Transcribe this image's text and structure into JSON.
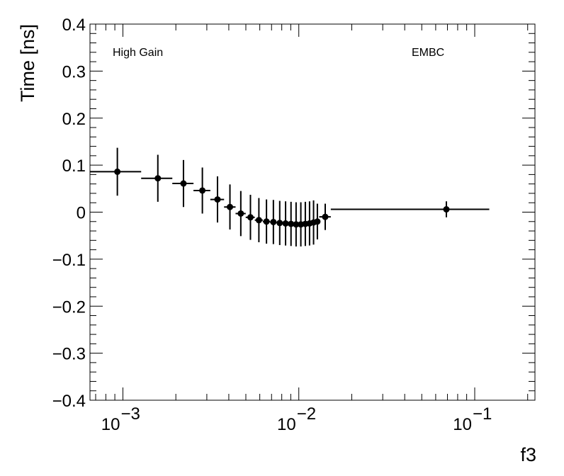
{
  "chart_data": {
    "type": "scatter",
    "xlabel": "f3",
    "ylabel": "Time [ns]",
    "xscale": "log",
    "xlim": [
      0.00065,
      0.22
    ],
    "ylim": [
      -0.4,
      0.4
    ],
    "y_ticks": [
      {
        "value": 0.4,
        "label": "0.4"
      },
      {
        "value": 0.3,
        "label": "0.3"
      },
      {
        "value": 0.2,
        "label": "0.2"
      },
      {
        "value": 0.1,
        "label": "0.1"
      },
      {
        "value": 0.0,
        "label": "0"
      },
      {
        "value": -0.1,
        "label": "−0.1"
      },
      {
        "value": -0.2,
        "label": "−0.2"
      },
      {
        "value": -0.3,
        "label": "−0.3"
      },
      {
        "value": -0.4,
        "label": "−0.4"
      }
    ],
    "x_ticks": [
      {
        "value": 0.001,
        "base": "10",
        "exp": "−3"
      },
      {
        "value": 0.01,
        "base": "10",
        "exp": "−2"
      },
      {
        "value": 0.1,
        "base": "10",
        "exp": "−1"
      }
    ],
    "annotations": [
      {
        "text": "High Gain",
        "position": "top-left"
      },
      {
        "text": "EMBC",
        "position": "top-right"
      }
    ],
    "grid": false,
    "series": [
      {
        "points": [
          {
            "x": 0.00093,
            "xlo": 0.00065,
            "xhi": 0.00127,
            "y": 0.086,
            "yerr": 0.051
          },
          {
            "x": 0.00158,
            "xlo": 0.00127,
            "xhi": 0.00191,
            "y": 0.072,
            "yerr": 0.05
          },
          {
            "x": 0.00221,
            "xlo": 0.00191,
            "xhi": 0.00252,
            "y": 0.061,
            "yerr": 0.05
          },
          {
            "x": 0.00283,
            "xlo": 0.00252,
            "xhi": 0.00314,
            "y": 0.046,
            "yerr": 0.049
          },
          {
            "x": 0.00345,
            "xlo": 0.00314,
            "xhi": 0.00376,
            "y": 0.027,
            "yerr": 0.049
          },
          {
            "x": 0.00406,
            "xlo": 0.00376,
            "xhi": 0.00437,
            "y": 0.011,
            "yerr": 0.048
          },
          {
            "x": 0.00468,
            "xlo": 0.00437,
            "xhi": 0.00499,
            "y": -0.003,
            "yerr": 0.048
          },
          {
            "x": 0.00531,
            "xlo": 0.00499,
            "xhi": 0.00562,
            "y": -0.011,
            "yerr": 0.048
          },
          {
            "x": 0.00593,
            "xlo": 0.00562,
            "xhi": 0.00624,
            "y": -0.017,
            "yerr": 0.047
          },
          {
            "x": 0.00655,
            "xlo": 0.00624,
            "xhi": 0.00686,
            "y": -0.02,
            "yerr": 0.047
          },
          {
            "x": 0.00717,
            "xlo": 0.00686,
            "xhi": 0.00748,
            "y": -0.021,
            "yerr": 0.047
          },
          {
            "x": 0.00779,
            "xlo": 0.00748,
            "xhi": 0.0081,
            "y": -0.023,
            "yerr": 0.047
          },
          {
            "x": 0.00841,
            "xlo": 0.0081,
            "xhi": 0.00872,
            "y": -0.024,
            "yerr": 0.047
          },
          {
            "x": 0.00903,
            "xlo": 0.00872,
            "xhi": 0.00934,
            "y": -0.025,
            "yerr": 0.047
          },
          {
            "x": 0.00965,
            "xlo": 0.00934,
            "xhi": 0.00996,
            "y": -0.026,
            "yerr": 0.047
          },
          {
            "x": 0.01027,
            "xlo": 0.00996,
            "xhi": 0.01058,
            "y": -0.026,
            "yerr": 0.047
          },
          {
            "x": 0.01089,
            "xlo": 0.01058,
            "xhi": 0.0112,
            "y": -0.025,
            "yerr": 0.047
          },
          {
            "x": 0.01151,
            "xlo": 0.0112,
            "xhi": 0.01182,
            "y": -0.024,
            "yerr": 0.047
          },
          {
            "x": 0.01213,
            "xlo": 0.01182,
            "xhi": 0.01244,
            "y": -0.022,
            "yerr": 0.047
          },
          {
            "x": 0.01275,
            "xlo": 0.01244,
            "xhi": 0.01306,
            "y": -0.02,
            "yerr": 0.038
          },
          {
            "x": 0.01413,
            "xlo": 0.01306,
            "xhi": 0.0152,
            "y": -0.01,
            "yerr": 0.028
          },
          {
            "x": 0.069,
            "xlo": 0.0152,
            "xhi": 0.121,
            "y": 0.006,
            "yerr": 0.017
          }
        ]
      }
    ]
  }
}
